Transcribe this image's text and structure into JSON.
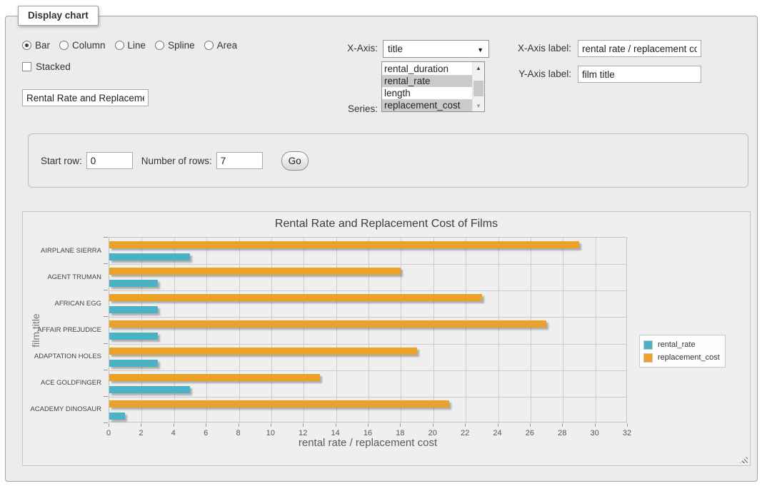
{
  "panel": {
    "legend": "Display chart"
  },
  "controls": {
    "chart_types": {
      "options": [
        {
          "label": "Bar",
          "selected": true
        },
        {
          "label": "Column",
          "selected": false
        },
        {
          "label": "Line",
          "selected": false
        },
        {
          "label": "Spline",
          "selected": false
        },
        {
          "label": "Area",
          "selected": false
        }
      ]
    },
    "stacked": {
      "label": "Stacked",
      "checked": false
    },
    "chart_title_input": {
      "value": "Rental Rate and Replacement Cost of Films"
    },
    "x_axis_select": {
      "label": "X-Axis:",
      "value": "title"
    },
    "series_select": {
      "label": "Series:",
      "options": [
        {
          "label": "rental_duration",
          "selected": false
        },
        {
          "label": "rental_rate",
          "selected": true
        },
        {
          "label": "length",
          "selected": false
        },
        {
          "label": "replacement_cost",
          "selected": true
        }
      ]
    },
    "x_axis_label_input": {
      "label": "X-Axis label:",
      "value": "rental rate / replacement cost"
    },
    "y_axis_label_input": {
      "label": "Y-Axis label:",
      "value": "film title"
    }
  },
  "row_controls": {
    "start_row": {
      "label": "Start row:",
      "value": "0"
    },
    "num_rows": {
      "label": "Number of rows:",
      "value": "7"
    },
    "go_button": "Go"
  },
  "chart_data": {
    "type": "bar",
    "orientation": "horizontal",
    "title": "Rental Rate and Replacement Cost of Films",
    "xlabel": "rental rate / replacement cost",
    "ylabel": "film title",
    "xlim": [
      0,
      32
    ],
    "xtick_step": 2,
    "grid": true,
    "legend_position": "right",
    "categories": [
      "AIRPLANE SIERRA",
      "AGENT TRUMAN",
      "AFRICAN EGG",
      "AFFAIR PREJUDICE",
      "ADAPTATION HOLES",
      "ACE GOLDFINGER",
      "ACADEMY DINOSAUR"
    ],
    "series": [
      {
        "name": "rental_rate",
        "color": "#4bb2c5",
        "values": [
          4.99,
          2.99,
          2.99,
          2.99,
          2.99,
          4.99,
          0.99
        ]
      },
      {
        "name": "replacement_cost",
        "color": "#eaa228",
        "values": [
          28.99,
          17.99,
          22.99,
          26.99,
          18.99,
          12.99,
          20.99
        ]
      }
    ]
  }
}
